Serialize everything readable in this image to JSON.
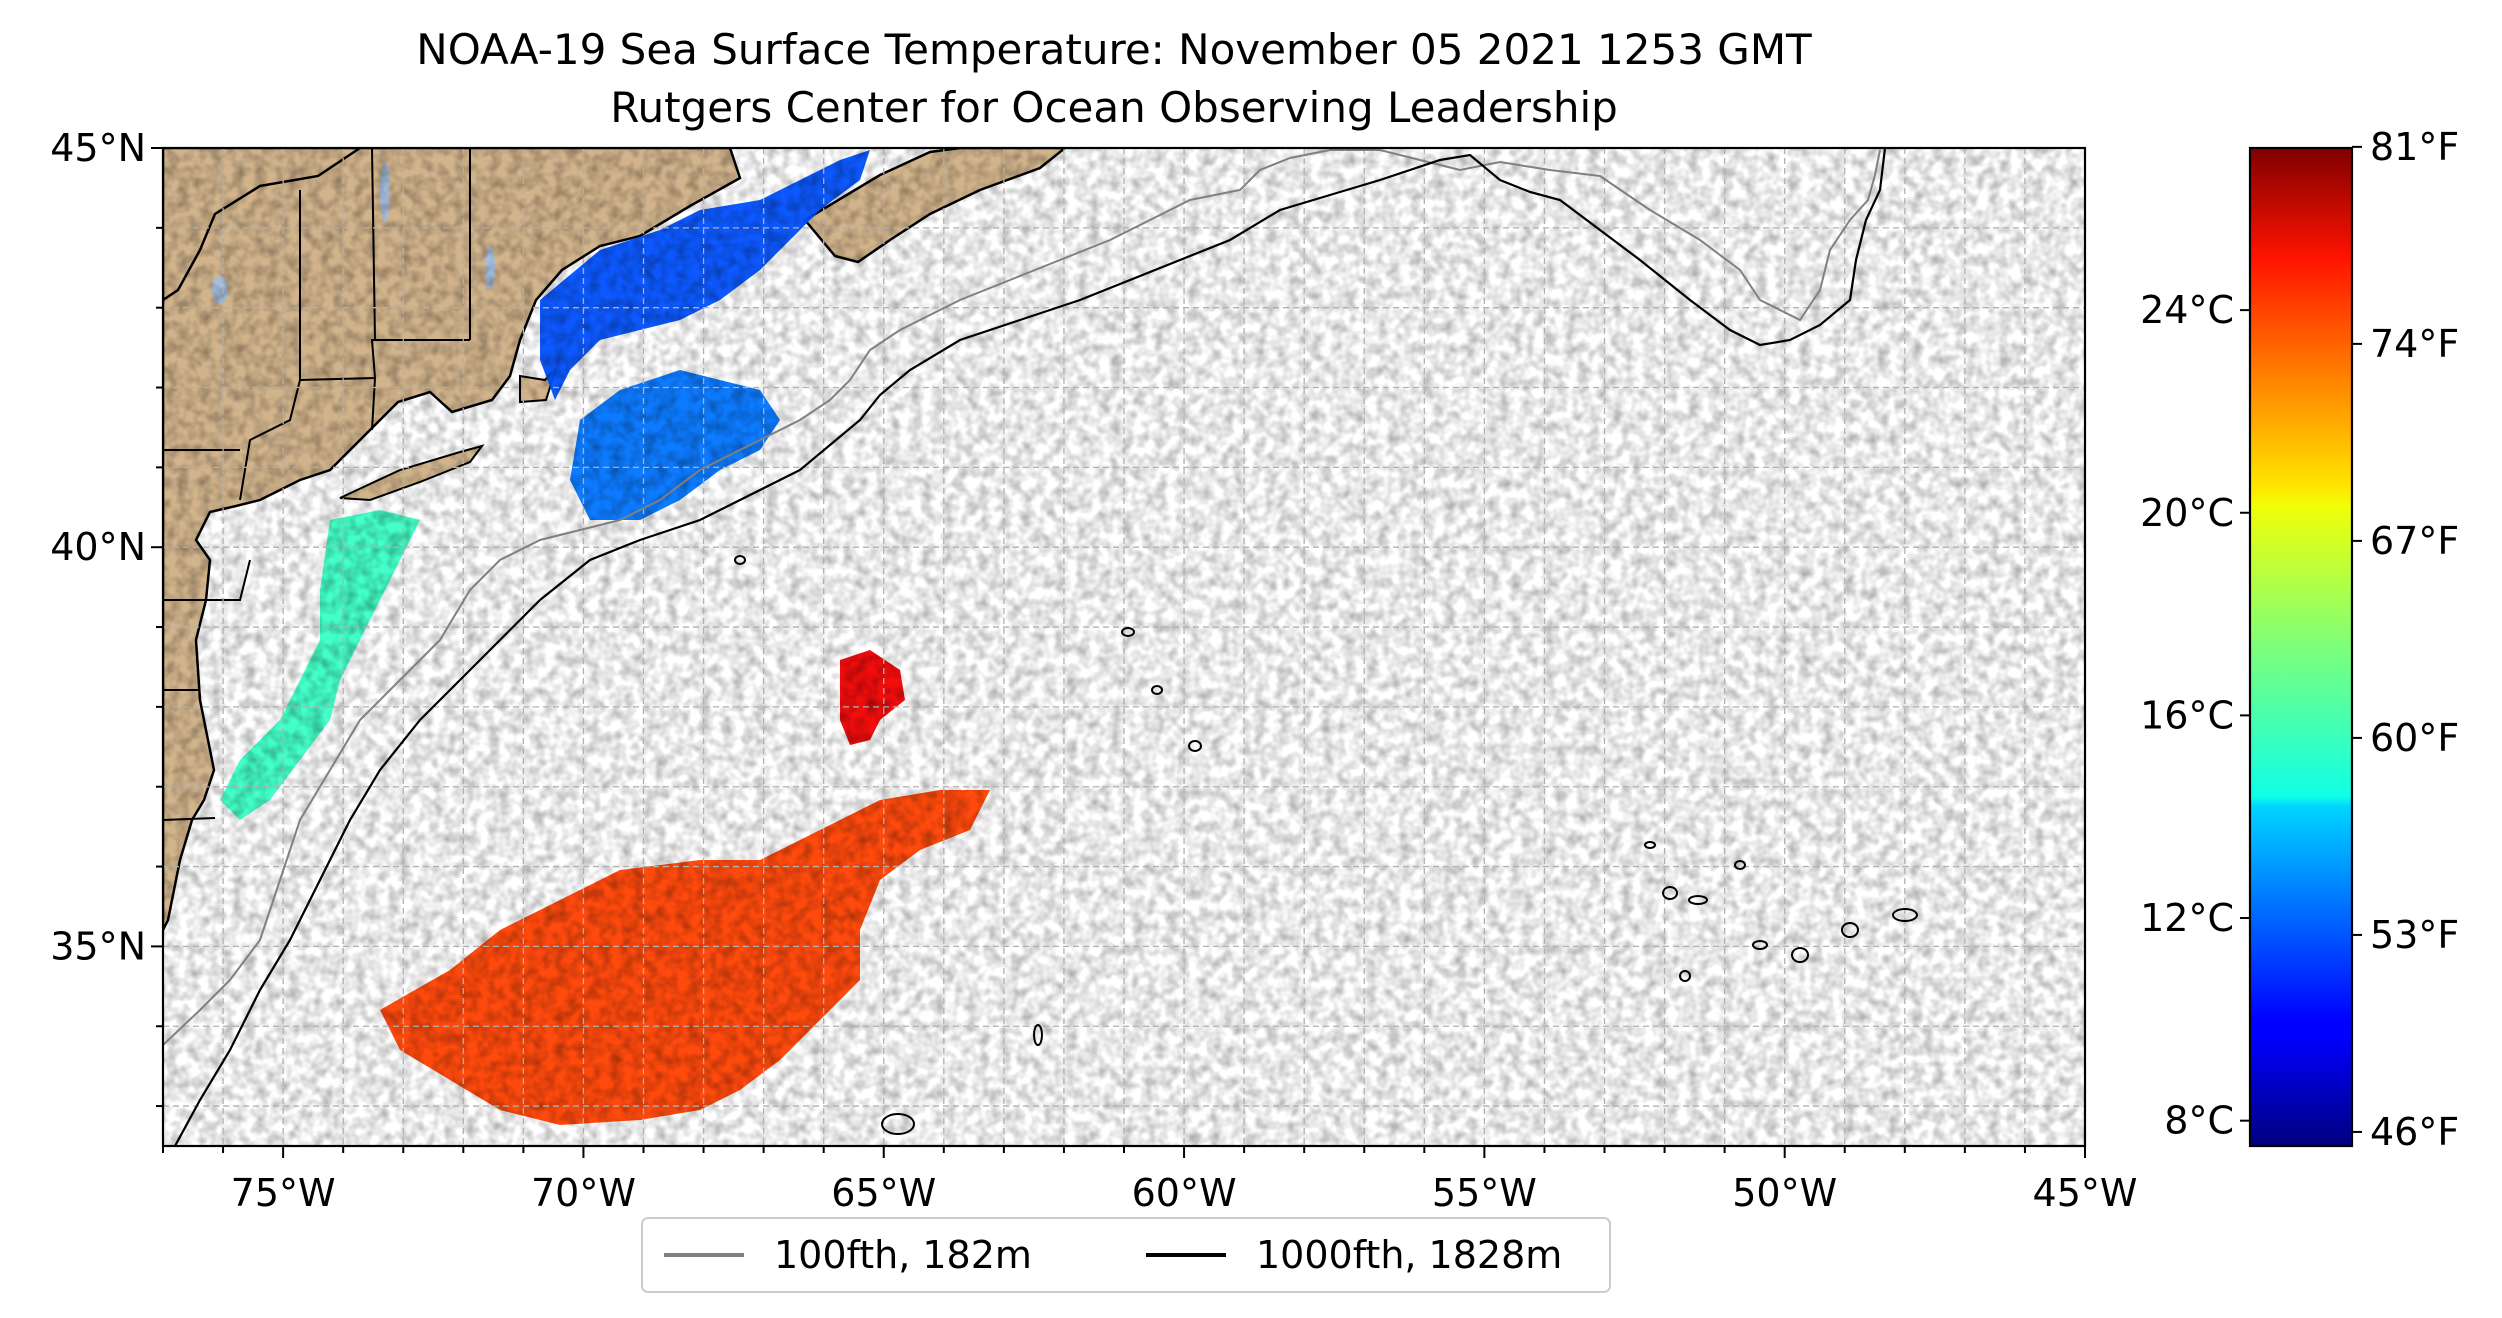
{
  "title": {
    "line1": "NOAA-19 Sea Surface Temperature: November 05 2021 1253 GMT",
    "line2": "Rutgers Center for Ocean Observing Leadership"
  },
  "map": {
    "lon_range": [
      -77,
      -45
    ],
    "lat_range": [
      32.5,
      45
    ],
    "x_ticks": [
      {
        "value": -75,
        "label": "75°W"
      },
      {
        "value": -70,
        "label": "70°W"
      },
      {
        "value": -65,
        "label": "65°W"
      },
      {
        "value": -60,
        "label": "60°W"
      },
      {
        "value": -55,
        "label": "55°W"
      },
      {
        "value": -50,
        "label": "50°W"
      },
      {
        "value": -45,
        "label": "45°W"
      }
    ],
    "y_ticks": [
      {
        "value": 45,
        "label": "45°N"
      },
      {
        "value": 40,
        "label": "40°N"
      },
      {
        "value": 35,
        "label": "35°N"
      }
    ],
    "grid": true,
    "grid_step_deg": 1,
    "colors": {
      "land": "#d2b48c",
      "lakes": "#a6bddb",
      "contour_100fth": "#808080",
      "contour_1000fth": "#000000",
      "grid": "#b0b0b0"
    }
  },
  "legend": {
    "placement": "bottom-center",
    "items": [
      {
        "label": "100fth, 182m",
        "color": "#808080"
      },
      {
        "label": "1000fth, 1828m",
        "color": "#000000"
      }
    ]
  },
  "colorbar": {
    "colormap": "jet",
    "range_c": [
      7.5,
      27.2
    ],
    "celsius_ticks": [
      {
        "value": 8,
        "label": "8°C"
      },
      {
        "value": 12,
        "label": "12°C"
      },
      {
        "value": 16,
        "label": "16°C"
      },
      {
        "value": 20,
        "label": "20°C"
      },
      {
        "value": 24,
        "label": "24°C"
      }
    ],
    "fahrenheit_ticks": [
      {
        "value": 46,
        "label": "46°F"
      },
      {
        "value": 53,
        "label": "53°F"
      },
      {
        "value": 60,
        "label": "60°F"
      },
      {
        "value": 67,
        "label": "67°F"
      },
      {
        "value": 74,
        "label": "74°F"
      },
      {
        "value": 81,
        "label": "81°F"
      }
    ]
  },
  "sst_regions": [
    {
      "name": "gulf-of-maine",
      "lon": -68.5,
      "lat": 43.3,
      "temp_c": 11.5
    },
    {
      "name": "georges-bank",
      "lon": -68.0,
      "lat": 41.8,
      "temp_c": 12.2
    },
    {
      "name": "mid-atlantic-bight",
      "lon": -73.5,
      "lat": 38.8,
      "temp_c": 16.0
    },
    {
      "name": "gulf-stream-ring",
      "lon": -64.6,
      "lat": 38.4,
      "temp_c": 25.0
    },
    {
      "name": "sargasso-sea",
      "lon": -67.5,
      "lat": 34.3,
      "temp_c": 23.5
    }
  ]
}
